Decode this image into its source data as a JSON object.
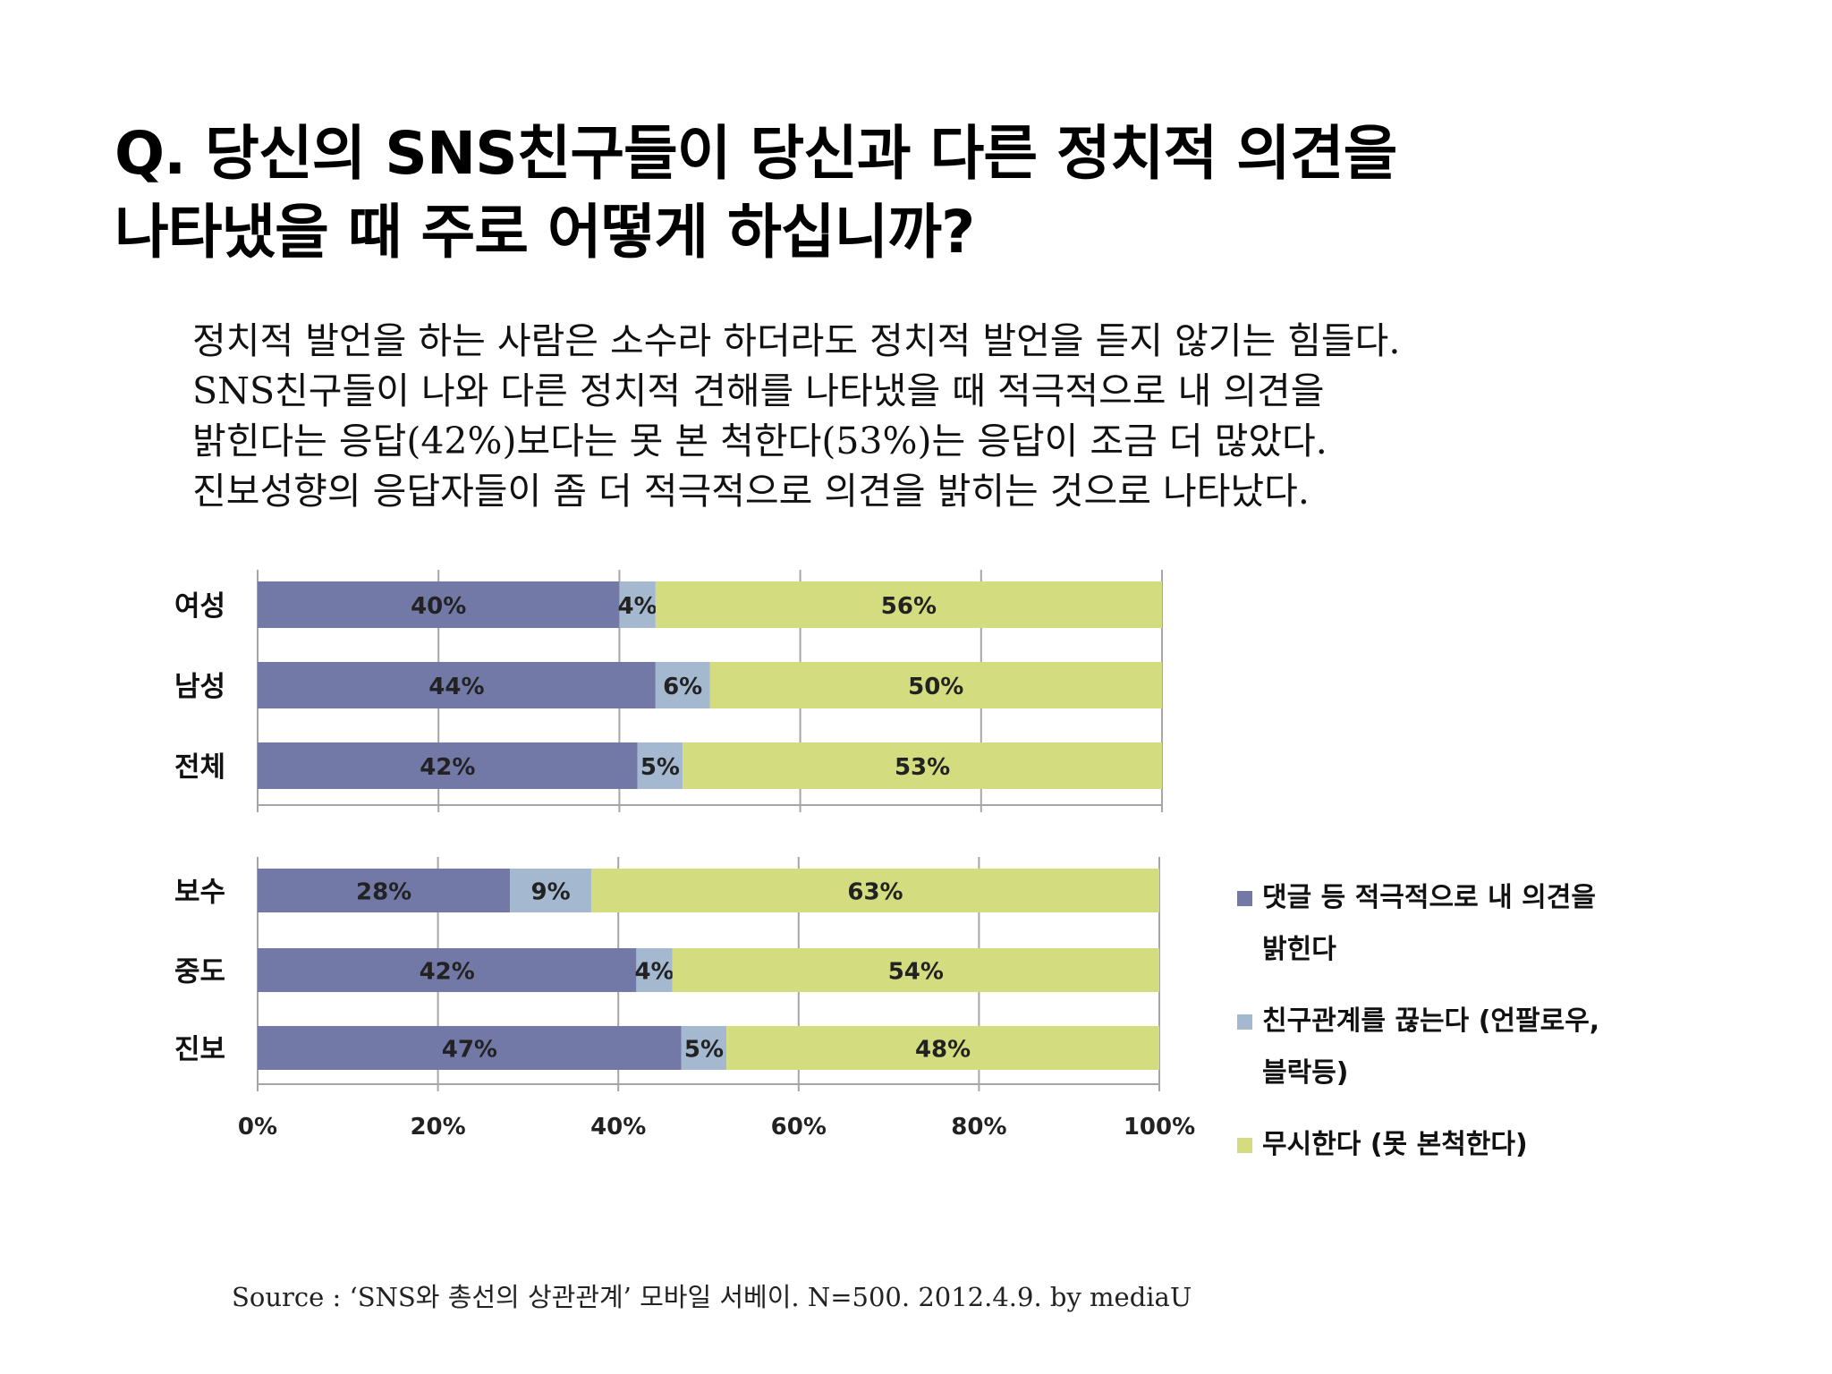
{
  "title": {
    "line1": "Q. 당신의 SNS친구들이 당신과 다른 정치적 의견을",
    "line2": "나타냈을 때 주로 어떻게 하십니까?"
  },
  "summary": [
    "정치적 발언을 하는 사람은 소수라 하더라도 정치적 발언을 듣지 않기는 힘들다.",
    "SNS친구들이 나와 다른 정치적 견해를 나타냈을 때 적극적으로 내 의견을",
    "밝힌다는 응답(42%)보다는 못 본 척한다(53%)는 응답이 조금 더 많았다.",
    "진보성향의 응답자들이 좀 더 적극적으로 의견을 밝히는 것으로 나타났다."
  ],
  "source": "Source : ‘SNS와 총선의 상관관계’ 모바일 서베이. N=500. 2012.4.9. by mediaU",
  "colors": {
    "series1": "#7379a6",
    "series2": "#a4b8cf",
    "series3": "#d3dc7e",
    "grid": "#a6a6a6"
  },
  "chart_data": [
    {
      "type": "bar",
      "orientation": "horizontal",
      "stacked": "percent",
      "categories": [
        "여성",
        "남성",
        "전체"
      ],
      "series": [
        {
          "name": "댓글 등 적극적으로 내 의견을 밝힌다",
          "values": [
            40,
            44,
            42
          ],
          "labels": [
            "40%",
            "44%",
            "42%"
          ]
        },
        {
          "name": "친구관계를 끊는다 (언팔로우, 블락등)",
          "values": [
            4,
            6,
            5
          ],
          "labels": [
            "4%",
            "6%",
            "5%"
          ]
        },
        {
          "name": "무시한다 (못 본척한다)",
          "values": [
            56,
            50,
            53
          ],
          "labels": [
            "56%",
            "50%",
            "53%"
          ]
        }
      ],
      "xlim": [
        0,
        100
      ],
      "grid": true
    },
    {
      "type": "bar",
      "orientation": "horizontal",
      "stacked": "percent",
      "categories": [
        "보수",
        "중도",
        "진보"
      ],
      "series": [
        {
          "name": "댓글 등 적극적으로 내 의견을 밝힌다",
          "values": [
            28,
            42,
            47
          ],
          "labels": [
            "28%",
            "42%",
            "47%"
          ]
        },
        {
          "name": "친구관계를 끊는다 (언팔로우, 블락등)",
          "values": [
            9,
            4,
            5
          ],
          "labels": [
            "9%",
            "4%",
            "5%"
          ]
        },
        {
          "name": "무시한다 (못 본척한다)",
          "values": [
            63,
            54,
            48
          ],
          "labels": [
            "63%",
            "54%",
            "48%"
          ]
        }
      ],
      "xlim": [
        0,
        100
      ],
      "x_ticks": [
        "0%",
        "20%",
        "40%",
        "60%",
        "80%",
        "100%"
      ],
      "grid": true
    }
  ],
  "legend": {
    "position": "right",
    "items": [
      {
        "line1": "댓글 등 적극적으로 내 의견을",
        "line2": "밝힌다"
      },
      {
        "line1": "친구관계를 끊는다 (언팔로우,",
        "line2": "블락등)"
      },
      {
        "line1": "무시한다 (못 본척한다)",
        "line2": ""
      }
    ]
  }
}
